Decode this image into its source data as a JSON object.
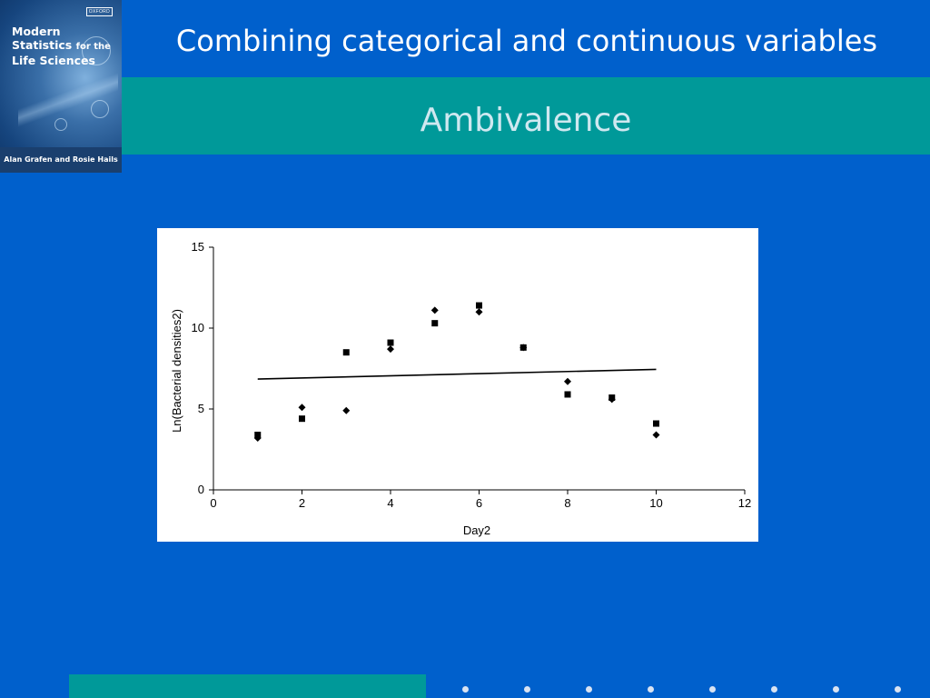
{
  "cover": {
    "title_line1": "Modern",
    "title_line2_a": "Statistics",
    "title_line2_b": "for the",
    "title_line3": "Life Sciences",
    "publisher": "OXFORD",
    "authors": "Alan Grafen and Rosie Hails"
  },
  "slide": {
    "title": "Combining categorical and continuous variables",
    "subtitle": "Ambivalence"
  },
  "colors": {
    "background": "#0060cc",
    "band": "#009999",
    "title_text": "#ffffff",
    "subtitle_text": "#cfe8f0"
  },
  "chart_data": {
    "type": "scatter",
    "xlabel": "Day2",
    "ylabel": "Ln(Bacterial densities2)",
    "xlim": [
      0,
      12
    ],
    "ylim": [
      0,
      15
    ],
    "xticks": [
      0,
      2,
      4,
      6,
      8,
      10,
      12
    ],
    "yticks": [
      0,
      5,
      10,
      15
    ],
    "grid": false,
    "series": [
      {
        "marker": "square",
        "x": [
          1,
          2,
          3,
          4,
          5,
          6,
          7,
          8,
          9,
          10
        ],
        "y": [
          3.4,
          4.4,
          8.5,
          9.1,
          10.3,
          11.4,
          8.8,
          5.9,
          5.7,
          4.1
        ]
      },
      {
        "marker": "diamond",
        "x": [
          1,
          2,
          3,
          4,
          5,
          6,
          7,
          8,
          9,
          10
        ],
        "y": [
          3.2,
          5.1,
          4.9,
          8.7,
          11.1,
          11.0,
          8.8,
          6.7,
          5.6,
          3.4
        ]
      }
    ],
    "fit_line": {
      "x": [
        1,
        10
      ],
      "y": [
        6.85,
        7.45
      ]
    }
  },
  "footer": {
    "dot_count": 8
  }
}
